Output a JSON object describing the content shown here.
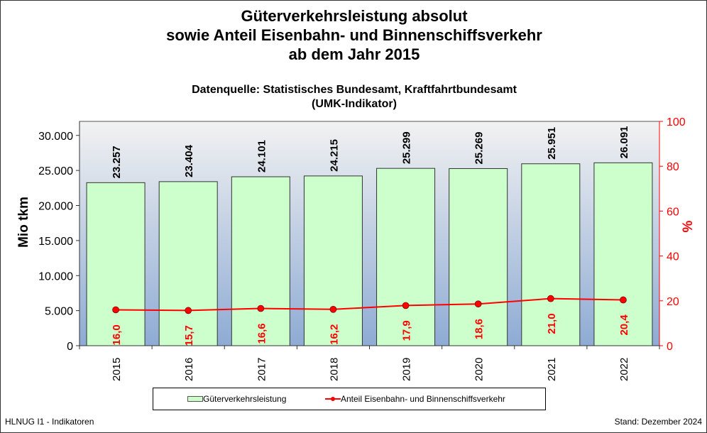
{
  "title_lines": [
    "Güterverkehrsleistung absolut",
    "sowie Anteil Eisenbahn- und Binnenschiffsverkehr",
    "ab dem Jahr 2015"
  ],
  "subtitle_lines": [
    "Datenquelle: Statistisches Bundesamt, Kraftfahrtbundesamt",
    "(UMK-Indikator)"
  ],
  "footer": {
    "left": "HLNUG I1 - Indikatoren",
    "right": "Stand: Dezember 2024"
  },
  "colors": {
    "bar_fill": "#ccffcc",
    "line": "#ff0000",
    "bg_top": "#f2f2f2",
    "bg_bottom": "#8eabd4"
  },
  "chart_data": {
    "type": "bar+line",
    "categories": [
      "2015",
      "2016",
      "2017",
      "2018",
      "2019",
      "2020",
      "2021",
      "2022"
    ],
    "series": [
      {
        "name": "Güterverkehrsleistung",
        "type": "bar",
        "axis": "left",
        "values": [
          23257,
          23404,
          24101,
          24215,
          25299,
          25269,
          25951,
          26091
        ],
        "labels": [
          "23.257",
          "23.404",
          "24.101",
          "24.215",
          "25.299",
          "25.269",
          "25.951",
          "26.091"
        ]
      },
      {
        "name": "Anteil Eisenbahn- und Binnenschiffsverkehr",
        "type": "line",
        "axis": "right",
        "values": [
          16.0,
          15.7,
          16.6,
          16.2,
          17.9,
          18.6,
          21.0,
          20.4
        ],
        "labels": [
          "16,0",
          "15,7",
          "16,6",
          "16,2",
          "17,9",
          "18,6",
          "21,0",
          "20,4"
        ]
      }
    ],
    "ylabel": "Mio tkm",
    "ylim": [
      0,
      32000
    ],
    "yticks": [
      0,
      5000,
      10000,
      15000,
      20000,
      25000,
      30000
    ],
    "ytick_labels": [
      "0",
      "5.000",
      "10.000",
      "15.000",
      "20.000",
      "25.000",
      "30.000"
    ],
    "y2label": "%",
    "y2lim": [
      0,
      100
    ],
    "y2ticks": [
      0,
      20,
      40,
      60,
      80,
      100
    ],
    "y2tick_labels": [
      "0",
      "20",
      "40",
      "60",
      "80",
      "100"
    ],
    "grid": false,
    "legend": "bottom"
  }
}
